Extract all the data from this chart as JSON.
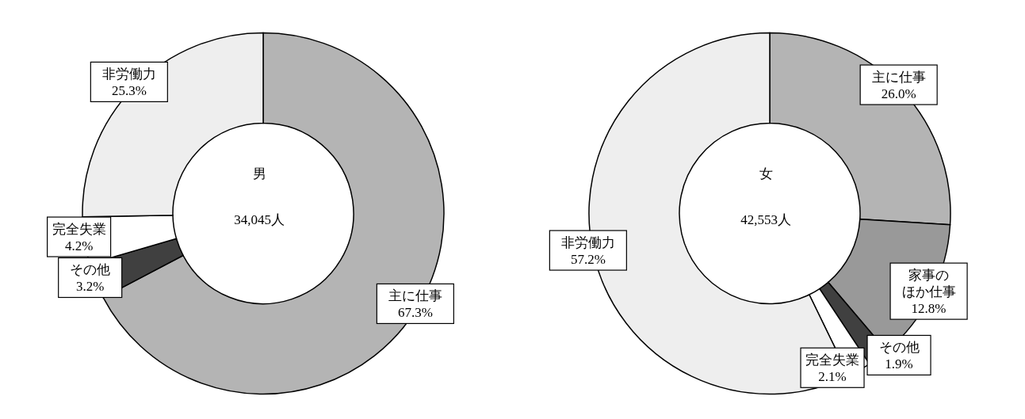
{
  "chart_data": [
    {
      "type": "donut",
      "categories": [
        "主に仕事",
        "その他",
        "完全失業",
        "非労働力"
      ],
      "values": [
        67.3,
        3.2,
        4.2,
        25.3
      ],
      "colors": [
        "#b4b4b4",
        "#404040",
        "#ffffff",
        "#eeeeee"
      ],
      "value_labels": [
        "67.3%",
        "3.2%",
        "4.2%",
        "25.3%"
      ],
      "annotations": [
        "男",
        "34,045人"
      ],
      "legend": false
    },
    {
      "type": "donut",
      "categories": [
        "主に仕事",
        "家事のほか仕事",
        "その他",
        "完全失業",
        "非労働力"
      ],
      "values": [
        26.0,
        12.8,
        1.9,
        2.1,
        57.2
      ],
      "colors": [
        "#b4b4b4",
        "#999999",
        "#404040",
        "#ffffff",
        "#eeeeee"
      ],
      "value_labels": [
        "26.0%",
        "12.8%",
        "1.9%",
        "2.1%",
        "57.2%"
      ],
      "annotations": [
        "女",
        "42,553人"
      ],
      "legend": false
    }
  ]
}
